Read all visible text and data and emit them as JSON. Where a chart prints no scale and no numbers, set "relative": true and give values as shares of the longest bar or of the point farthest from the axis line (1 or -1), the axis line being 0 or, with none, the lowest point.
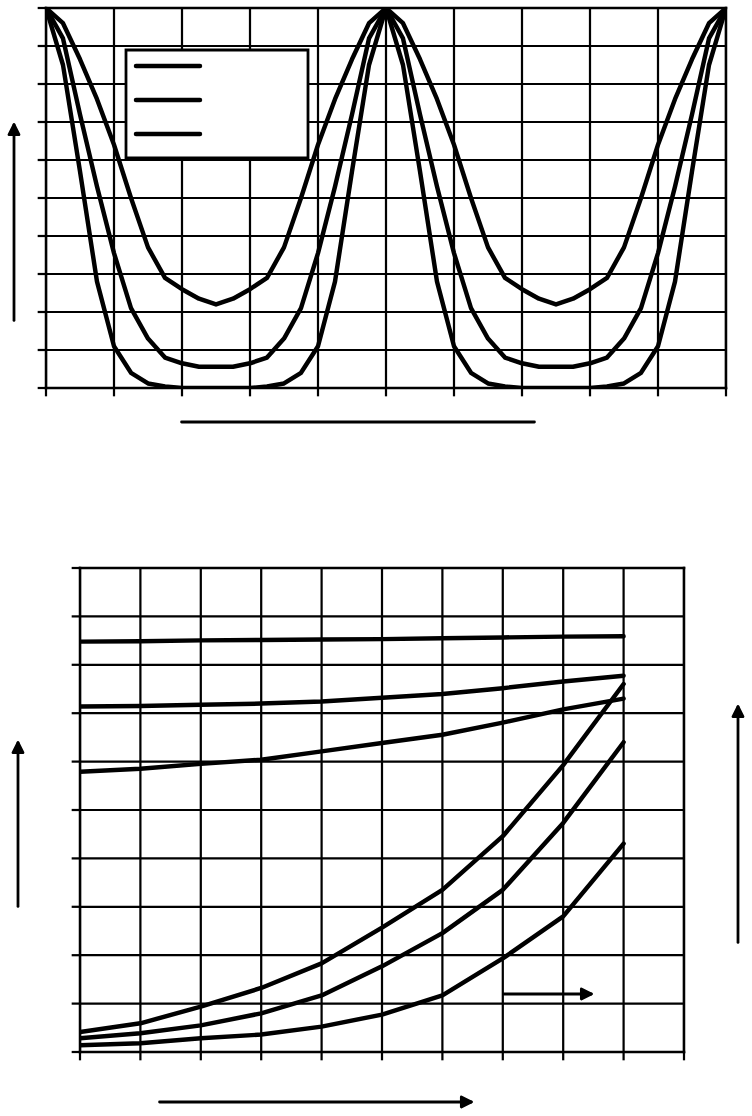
{
  "chart_data": [
    {
      "type": "line",
      "relative": true,
      "grid": true,
      "categories": [
        null,
        null,
        null,
        null,
        null,
        null,
        null,
        null,
        null,
        null,
        null,
        null,
        null,
        null,
        null,
        null,
        null,
        null,
        null,
        null,
        null,
        null,
        null,
        null,
        null,
        null,
        null,
        null,
        null,
        null,
        null,
        null,
        null,
        null,
        null,
        null,
        null,
        null,
        null,
        null,
        null
      ],
      "series": [
        {
          "color": "#000000",
          "values": [
            1,
            0.96,
            0.865,
            0.76,
            0.64,
            0.5,
            0.37,
            0.29,
            0.26,
            0.235,
            0.22,
            0.235,
            0.26,
            0.29,
            0.37,
            0.5,
            0.64,
            0.76,
            0.865,
            0.96,
            1,
            0.96,
            0.865,
            0.76,
            0.64,
            0.5,
            0.37,
            0.29,
            0.26,
            0.235,
            0.22,
            0.235,
            0.26,
            0.29,
            0.37,
            0.5,
            0.64,
            0.76,
            0.865,
            0.96,
            1
          ]
        },
        {
          "color": "#000000",
          "values": [
            1,
            0.92,
            0.72,
            0.53,
            0.355,
            0.21,
            0.13,
            0.08,
            0.065,
            0.056,
            0.056,
            0.056,
            0.065,
            0.08,
            0.13,
            0.21,
            0.355,
            0.53,
            0.72,
            0.92,
            1,
            0.92,
            0.72,
            0.53,
            0.355,
            0.21,
            0.13,
            0.08,
            0.065,
            0.056,
            0.056,
            0.056,
            0.065,
            0.08,
            0.13,
            0.21,
            0.355,
            0.53,
            0.72,
            0.92,
            1
          ]
        },
        {
          "color": "#000000",
          "values": [
            1,
            0.85,
            0.57,
            0.28,
            0.11,
            0.04,
            0.012,
            0.004,
            0,
            0,
            0,
            0,
            0,
            0.004,
            0.012,
            0.04,
            0.11,
            0.28,
            0.57,
            0.85,
            1,
            0.85,
            0.57,
            0.28,
            0.11,
            0.04,
            0.012,
            0.004,
            0,
            0,
            0,
            0,
            0,
            0.004,
            0.012,
            0.04,
            0.11,
            0.28,
            0.57,
            0.85,
            1
          ]
        }
      ]
    },
    {
      "type": "line",
      "relative": true,
      "grid": true,
      "categories": [
        null,
        null,
        null,
        null,
        null,
        null,
        null,
        null,
        null,
        null
      ],
      "series": [
        {
          "color": "#000000",
          "values": [
            0.987,
            0.988,
            0.99,
            0.991,
            0.992,
            0.993,
            0.995,
            0.997,
            0.999,
            1
          ]
        },
        {
          "color": "#000000",
          "values": [
            0.831,
            0.832,
            0.835,
            0.838,
            0.843,
            0.852,
            0.861,
            0.875,
            0.891,
            0.905
          ]
        },
        {
          "color": "#000000",
          "values": [
            0.674,
            0.681,
            0.693,
            0.703,
            0.723,
            0.743,
            0.763,
            0.792,
            0.824,
            0.85
          ]
        },
        {
          "color": "#000000",
          "values": [
            0.048,
            0.069,
            0.109,
            0.154,
            0.213,
            0.299,
            0.39,
            0.519,
            0.69,
            0.885
          ]
        },
        {
          "color": "#000000",
          "values": [
            0.033,
            0.045,
            0.064,
            0.093,
            0.136,
            0.206,
            0.286,
            0.39,
            0.551,
            0.745
          ]
        },
        {
          "color": "#000000",
          "values": [
            0.016,
            0.021,
            0.033,
            0.042,
            0.061,
            0.09,
            0.136,
            0.225,
            0.326,
            0.501
          ]
        }
      ]
    }
  ]
}
